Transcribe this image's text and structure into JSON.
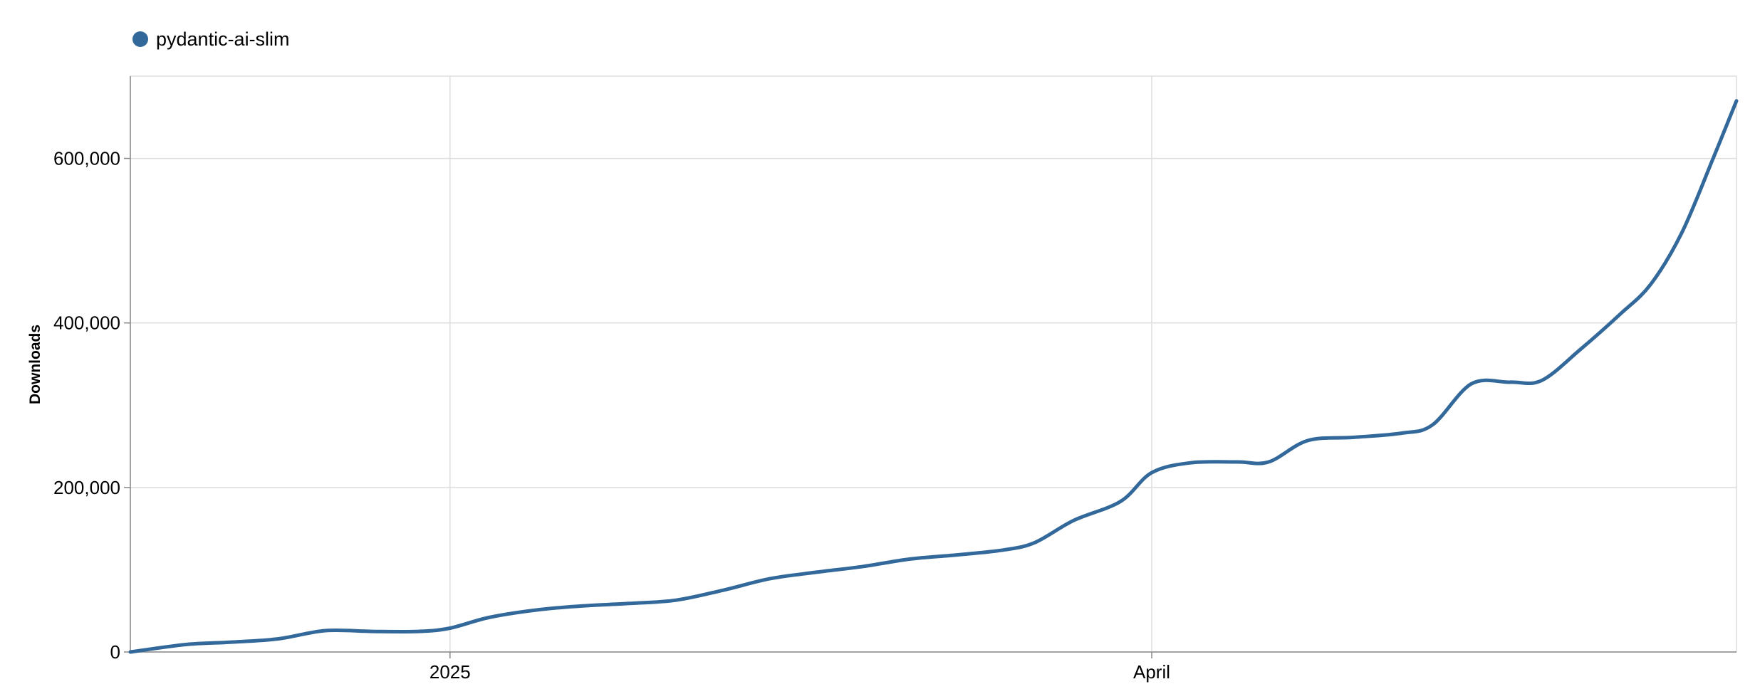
{
  "chart_data": {
    "type": "line",
    "title": "",
    "xlabel": "",
    "ylabel": "Downloads",
    "legend": {
      "position": "top-left",
      "entries": [
        "pydantic-ai-slim"
      ]
    },
    "grid": true,
    "x_ticks": [
      {
        "label": "2025",
        "date": "2025-01-01"
      },
      {
        "label": "April",
        "date": "2025-04-01"
      }
    ],
    "xlim": [
      "2024-11-21",
      "2025-06-15"
    ],
    "ylim": [
      0,
      700000
    ],
    "y_ticks": [
      0,
      200000,
      400000,
      600000
    ],
    "y_tick_labels": [
      "0",
      "200,000",
      "400,000",
      "600,000"
    ],
    "series": [
      {
        "name": "pydantic-ai-slim",
        "color": "#33699a",
        "points": [
          [
            "2024-11-21",
            0
          ],
          [
            "2024-11-28",
            9000
          ],
          [
            "2024-12-04",
            12000
          ],
          [
            "2024-12-10",
            16000
          ],
          [
            "2024-12-16",
            26000
          ],
          [
            "2024-12-22",
            25000
          ],
          [
            "2024-12-28",
            25000
          ],
          [
            "2025-01-01",
            29000
          ],
          [
            "2025-01-06",
            42000
          ],
          [
            "2025-01-12",
            51000
          ],
          [
            "2025-01-18",
            56000
          ],
          [
            "2025-01-24",
            59000
          ],
          [
            "2025-01-30",
            63000
          ],
          [
            "2025-02-05",
            75000
          ],
          [
            "2025-02-11",
            89000
          ],
          [
            "2025-02-17",
            97000
          ],
          [
            "2025-02-23",
            104000
          ],
          [
            "2025-03-01",
            113000
          ],
          [
            "2025-03-07",
            118000
          ],
          [
            "2025-03-13",
            124000
          ],
          [
            "2025-03-17",
            133000
          ],
          [
            "2025-03-22",
            160000
          ],
          [
            "2025-03-28",
            183000
          ],
          [
            "2025-04-01",
            218000
          ],
          [
            "2025-04-06",
            230000
          ],
          [
            "2025-04-12",
            231000
          ],
          [
            "2025-04-16",
            231000
          ],
          [
            "2025-04-21",
            257000
          ],
          [
            "2025-04-27",
            261000
          ],
          [
            "2025-05-03",
            266000
          ],
          [
            "2025-05-07",
            276000
          ],
          [
            "2025-05-12",
            326000
          ],
          [
            "2025-05-17",
            328000
          ],
          [
            "2025-05-21",
            330000
          ],
          [
            "2025-05-26",
            368000
          ],
          [
            "2025-05-31",
            410000
          ],
          [
            "2025-06-04",
            447000
          ],
          [
            "2025-06-08",
            510000
          ],
          [
            "2025-06-12",
            600000
          ],
          [
            "2025-06-15",
            670000
          ]
        ]
      }
    ]
  }
}
